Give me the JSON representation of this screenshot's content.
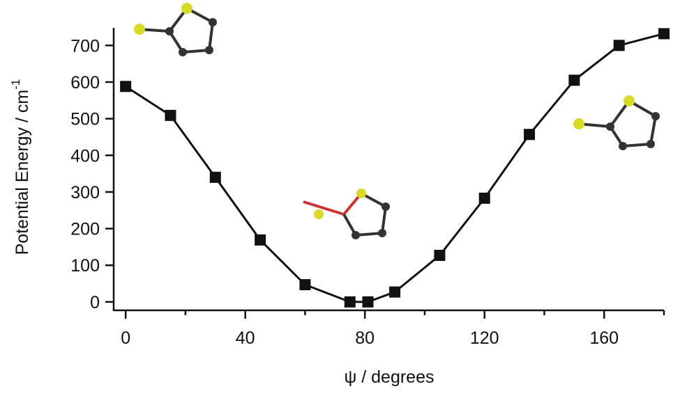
{
  "chart_data": {
    "type": "line",
    "xlabel": "ψ  / degrees",
    "ylabel": "Potential Energy / cm",
    "ylabel_superscript": "-1",
    "x": [
      0,
      15,
      30,
      45,
      60,
      75,
      81,
      90,
      105,
      120,
      135,
      150,
      165,
      180
    ],
    "series": [
      {
        "name": "Potential energy",
        "color": "#111111",
        "values": [
          588,
          509,
          340,
          169,
          47,
          0,
          0,
          27,
          127,
          283,
          457,
          605,
          700,
          732
        ]
      }
    ],
    "xlim": [
      -4,
      180
    ],
    "xticks": [
      0,
      40,
      80,
      120,
      160
    ],
    "xminorticks": [
      20,
      60,
      100,
      140,
      180
    ],
    "ylim": [
      -23,
      748
    ],
    "yticks": [
      0,
      100,
      200,
      300,
      400,
      500,
      600,
      700
    ],
    "marker": "square"
  }
}
